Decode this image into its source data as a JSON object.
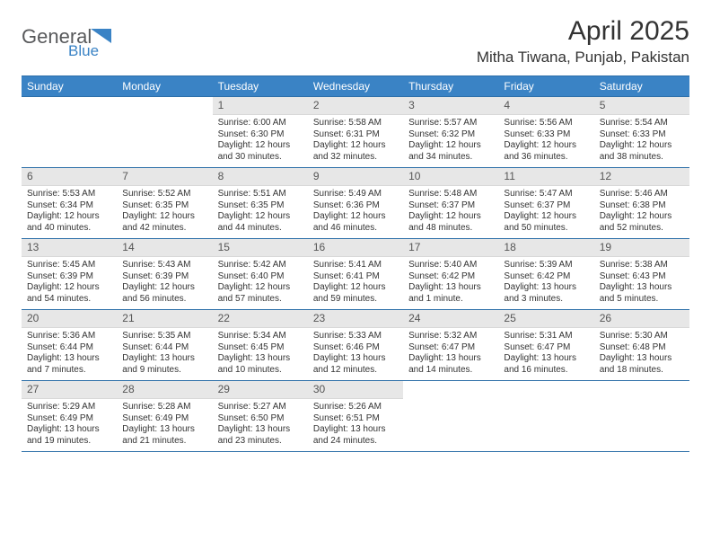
{
  "brand": {
    "word1": "General",
    "word2": "Blue"
  },
  "colors": {
    "header_bg": "#3a83c5",
    "header_border": "#2c6fa8",
    "daynum_bg": "#e7e7e7",
    "brand_general": "#58595b",
    "brand_blue": "#3a83c5"
  },
  "header": {
    "month": "April 2025",
    "location": "Mitha Tiwana, Punjab, Pakistan"
  },
  "dayNames": [
    "Sunday",
    "Monday",
    "Tuesday",
    "Wednesday",
    "Thursday",
    "Friday",
    "Saturday"
  ],
  "weeks": [
    [
      null,
      null,
      {
        "n": "1",
        "sr": "Sunrise: 6:00 AM",
        "ss": "Sunset: 6:30 PM",
        "dl1": "Daylight: 12 hours",
        "dl2": "and 30 minutes."
      },
      {
        "n": "2",
        "sr": "Sunrise: 5:58 AM",
        "ss": "Sunset: 6:31 PM",
        "dl1": "Daylight: 12 hours",
        "dl2": "and 32 minutes."
      },
      {
        "n": "3",
        "sr": "Sunrise: 5:57 AM",
        "ss": "Sunset: 6:32 PM",
        "dl1": "Daylight: 12 hours",
        "dl2": "and 34 minutes."
      },
      {
        "n": "4",
        "sr": "Sunrise: 5:56 AM",
        "ss": "Sunset: 6:33 PM",
        "dl1": "Daylight: 12 hours",
        "dl2": "and 36 minutes."
      },
      {
        "n": "5",
        "sr": "Sunrise: 5:54 AM",
        "ss": "Sunset: 6:33 PM",
        "dl1": "Daylight: 12 hours",
        "dl2": "and 38 minutes."
      }
    ],
    [
      {
        "n": "6",
        "sr": "Sunrise: 5:53 AM",
        "ss": "Sunset: 6:34 PM",
        "dl1": "Daylight: 12 hours",
        "dl2": "and 40 minutes."
      },
      {
        "n": "7",
        "sr": "Sunrise: 5:52 AM",
        "ss": "Sunset: 6:35 PM",
        "dl1": "Daylight: 12 hours",
        "dl2": "and 42 minutes."
      },
      {
        "n": "8",
        "sr": "Sunrise: 5:51 AM",
        "ss": "Sunset: 6:35 PM",
        "dl1": "Daylight: 12 hours",
        "dl2": "and 44 minutes."
      },
      {
        "n": "9",
        "sr": "Sunrise: 5:49 AM",
        "ss": "Sunset: 6:36 PM",
        "dl1": "Daylight: 12 hours",
        "dl2": "and 46 minutes."
      },
      {
        "n": "10",
        "sr": "Sunrise: 5:48 AM",
        "ss": "Sunset: 6:37 PM",
        "dl1": "Daylight: 12 hours",
        "dl2": "and 48 minutes."
      },
      {
        "n": "11",
        "sr": "Sunrise: 5:47 AM",
        "ss": "Sunset: 6:37 PM",
        "dl1": "Daylight: 12 hours",
        "dl2": "and 50 minutes."
      },
      {
        "n": "12",
        "sr": "Sunrise: 5:46 AM",
        "ss": "Sunset: 6:38 PM",
        "dl1": "Daylight: 12 hours",
        "dl2": "and 52 minutes."
      }
    ],
    [
      {
        "n": "13",
        "sr": "Sunrise: 5:45 AM",
        "ss": "Sunset: 6:39 PM",
        "dl1": "Daylight: 12 hours",
        "dl2": "and 54 minutes."
      },
      {
        "n": "14",
        "sr": "Sunrise: 5:43 AM",
        "ss": "Sunset: 6:39 PM",
        "dl1": "Daylight: 12 hours",
        "dl2": "and 56 minutes."
      },
      {
        "n": "15",
        "sr": "Sunrise: 5:42 AM",
        "ss": "Sunset: 6:40 PM",
        "dl1": "Daylight: 12 hours",
        "dl2": "and 57 minutes."
      },
      {
        "n": "16",
        "sr": "Sunrise: 5:41 AM",
        "ss": "Sunset: 6:41 PM",
        "dl1": "Daylight: 12 hours",
        "dl2": "and 59 minutes."
      },
      {
        "n": "17",
        "sr": "Sunrise: 5:40 AM",
        "ss": "Sunset: 6:42 PM",
        "dl1": "Daylight: 13 hours",
        "dl2": "and 1 minute."
      },
      {
        "n": "18",
        "sr": "Sunrise: 5:39 AM",
        "ss": "Sunset: 6:42 PM",
        "dl1": "Daylight: 13 hours",
        "dl2": "and 3 minutes."
      },
      {
        "n": "19",
        "sr": "Sunrise: 5:38 AM",
        "ss": "Sunset: 6:43 PM",
        "dl1": "Daylight: 13 hours",
        "dl2": "and 5 minutes."
      }
    ],
    [
      {
        "n": "20",
        "sr": "Sunrise: 5:36 AM",
        "ss": "Sunset: 6:44 PM",
        "dl1": "Daylight: 13 hours",
        "dl2": "and 7 minutes."
      },
      {
        "n": "21",
        "sr": "Sunrise: 5:35 AM",
        "ss": "Sunset: 6:44 PM",
        "dl1": "Daylight: 13 hours",
        "dl2": "and 9 minutes."
      },
      {
        "n": "22",
        "sr": "Sunrise: 5:34 AM",
        "ss": "Sunset: 6:45 PM",
        "dl1": "Daylight: 13 hours",
        "dl2": "and 10 minutes."
      },
      {
        "n": "23",
        "sr": "Sunrise: 5:33 AM",
        "ss": "Sunset: 6:46 PM",
        "dl1": "Daylight: 13 hours",
        "dl2": "and 12 minutes."
      },
      {
        "n": "24",
        "sr": "Sunrise: 5:32 AM",
        "ss": "Sunset: 6:47 PM",
        "dl1": "Daylight: 13 hours",
        "dl2": "and 14 minutes."
      },
      {
        "n": "25",
        "sr": "Sunrise: 5:31 AM",
        "ss": "Sunset: 6:47 PM",
        "dl1": "Daylight: 13 hours",
        "dl2": "and 16 minutes."
      },
      {
        "n": "26",
        "sr": "Sunrise: 5:30 AM",
        "ss": "Sunset: 6:48 PM",
        "dl1": "Daylight: 13 hours",
        "dl2": "and 18 minutes."
      }
    ],
    [
      {
        "n": "27",
        "sr": "Sunrise: 5:29 AM",
        "ss": "Sunset: 6:49 PM",
        "dl1": "Daylight: 13 hours",
        "dl2": "and 19 minutes."
      },
      {
        "n": "28",
        "sr": "Sunrise: 5:28 AM",
        "ss": "Sunset: 6:49 PM",
        "dl1": "Daylight: 13 hours",
        "dl2": "and 21 minutes."
      },
      {
        "n": "29",
        "sr": "Sunrise: 5:27 AM",
        "ss": "Sunset: 6:50 PM",
        "dl1": "Daylight: 13 hours",
        "dl2": "and 23 minutes."
      },
      {
        "n": "30",
        "sr": "Sunrise: 5:26 AM",
        "ss": "Sunset: 6:51 PM",
        "dl1": "Daylight: 13 hours",
        "dl2": "and 24 minutes."
      },
      null,
      null,
      null
    ]
  ]
}
